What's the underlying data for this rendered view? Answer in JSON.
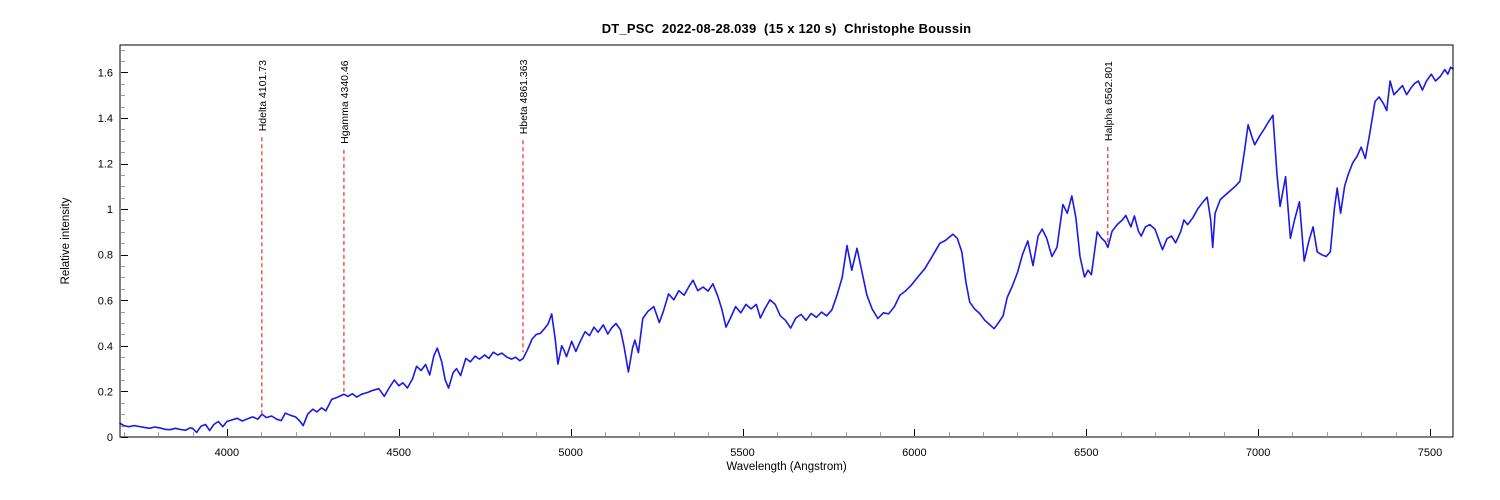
{
  "header": {
    "title": "DT_PSC  2022-08-28.039  (15 x 120 s)  Christophe Boussin"
  },
  "chart_data": {
    "type": "line",
    "title": "DT_PSC  2022-08-28.039  (15 x 120 s)  Christophe Boussin",
    "xlabel": "Wavelength (Angstrom)",
    "ylabel": "Relative intensity",
    "xlim": [
      3689,
      7567
    ],
    "ylim": [
      0,
      1.72
    ],
    "x_major_ticks": [
      4000,
      4500,
      5000,
      5500,
      6000,
      6500,
      7000,
      7500
    ],
    "x_minor_step": 100,
    "y_major_ticks": [
      0,
      0.2,
      0.4,
      0.6,
      0.8,
      1,
      1.2,
      1.4,
      1.6
    ],
    "y_minor_step": 0.05,
    "grid": false,
    "legend": "none",
    "line_color": "#1a1ae8",
    "marker_line_color": "#e80000",
    "axis_color": "#000000",
    "minor_tick_color": "#a0a0a0",
    "spectral_lines": [
      {
        "label": "Hdelta 4101.73",
        "wavelength": 4101.73,
        "line_top": 1.315,
        "line_bottom": 0.105
      },
      {
        "label": "Hgamma 4340.46",
        "wavelength": 4340.46,
        "line_top": 1.26,
        "line_bottom": 0.19
      },
      {
        "label": "Hbeta 4861.363",
        "wavelength": 4861.363,
        "line_top": 1.302,
        "line_bottom": 0.372
      },
      {
        "label": "Halpha 6562.801",
        "wavelength": 6562.801,
        "line_top": 1.272,
        "line_bottom": 0.838
      }
    ],
    "series": [
      {
        "name": "spectrum",
        "x": [
          3689,
          3700,
          3715,
          3730,
          3745,
          3760,
          3775,
          3790,
          3805,
          3820,
          3835,
          3850,
          3865,
          3880,
          3892,
          3900,
          3912,
          3925,
          3938,
          3950,
          3962,
          3975,
          3988,
          4000,
          4015,
          4030,
          4045,
          4060,
          4075,
          4090,
          4102,
          4115,
          4130,
          4145,
          4158,
          4170,
          4185,
          4200,
          4212,
          4222,
          4235,
          4250,
          4262,
          4275,
          4288,
          4305,
          4318,
          4330,
          4340,
          4352,
          4365,
          4378,
          4392,
          4408,
          4425,
          4442,
          4458,
          4472,
          4487,
          4500,
          4512,
          4525,
          4540,
          4552,
          4565,
          4578,
          4590,
          4602,
          4612,
          4625,
          4635,
          4645,
          4658,
          4668,
          4680,
          4695,
          4708,
          4722,
          4735,
          4750,
          4762,
          4775,
          4788,
          4800,
          4815,
          4828,
          4840,
          4852,
          4862,
          4875,
          4888,
          4900,
          4912,
          4925,
          4935,
          4945,
          4955,
          4963,
          4974,
          4981,
          4988,
          5003,
          5015,
          5028,
          5042,
          5055,
          5068,
          5080,
          5095,
          5108,
          5120,
          5132,
          5145,
          5155,
          5168,
          5180,
          5187,
          5197,
          5210,
          5225,
          5242,
          5258,
          5270,
          5285,
          5300,
          5315,
          5330,
          5345,
          5356,
          5370,
          5385,
          5400,
          5414,
          5428,
          5440,
          5452,
          5465,
          5480,
          5495,
          5510,
          5525,
          5540,
          5552,
          5565,
          5580,
          5595,
          5610,
          5625,
          5640,
          5655,
          5670,
          5685,
          5700,
          5715,
          5730,
          5745,
          5760,
          5775,
          5790,
          5804,
          5818,
          5833,
          5848,
          5862,
          5877,
          5894,
          5910,
          5925,
          5942,
          5958,
          5975,
          5992,
          6010,
          6030,
          6050,
          6074,
          6090,
          6112,
          6125,
          6138,
          6150,
          6161,
          6175,
          6190,
          6205,
          6220,
          6232,
          6245,
          6258,
          6270,
          6285,
          6300,
          6315,
          6330,
          6345,
          6360,
          6372,
          6385,
          6400,
          6415,
          6432,
          6445,
          6458,
          6470,
          6482,
          6495,
          6505,
          6515,
          6525,
          6532,
          6545,
          6555,
          6563,
          6575,
          6590,
          6605,
          6615,
          6630,
          6640,
          6652,
          6660,
          6672,
          6685,
          6700,
          6712,
          6722,
          6735,
          6748,
          6760,
          6775,
          6784,
          6795,
          6810,
          6825,
          6840,
          6852,
          6862,
          6868,
          6875,
          6890,
          6905,
          6920,
          6935,
          6947,
          6960,
          6971,
          6983,
          6990,
          7005,
          7018,
          7030,
          7043,
          7055,
          7064,
          7080,
          7094,
          7106,
          7120,
          7134,
          7148,
          7160,
          7172,
          7185,
          7198,
          7210,
          7222,
          7230,
          7240,
          7252,
          7262,
          7275,
          7288,
          7300,
          7312,
          7325,
          7340,
          7352,
          7365,
          7374,
          7384,
          7395,
          7408,
          7420,
          7432,
          7445,
          7456,
          7466,
          7478,
          7490,
          7504,
          7516,
          7530,
          7543,
          7552,
          7560,
          7567
        ],
        "y": [
          0.06,
          0.05,
          0.045,
          0.05,
          0.046,
          0.042,
          0.038,
          0.044,
          0.04,
          0.034,
          0.032,
          0.038,
          0.033,
          0.03,
          0.04,
          0.038,
          0.02,
          0.048,
          0.055,
          0.028,
          0.055,
          0.068,
          0.045,
          0.068,
          0.075,
          0.082,
          0.07,
          0.08,
          0.088,
          0.078,
          0.1,
          0.085,
          0.092,
          0.078,
          0.072,
          0.105,
          0.095,
          0.088,
          0.07,
          0.05,
          0.1,
          0.122,
          0.11,
          0.128,
          0.115,
          0.165,
          0.172,
          0.18,
          0.188,
          0.178,
          0.19,
          0.175,
          0.188,
          0.195,
          0.205,
          0.212,
          0.178,
          0.215,
          0.25,
          0.225,
          0.238,
          0.215,
          0.255,
          0.31,
          0.292,
          0.318,
          0.272,
          0.355,
          0.39,
          0.33,
          0.25,
          0.215,
          0.282,
          0.3,
          0.27,
          0.345,
          0.33,
          0.355,
          0.342,
          0.36,
          0.345,
          0.372,
          0.36,
          0.368,
          0.35,
          0.342,
          0.35,
          0.335,
          0.345,
          0.385,
          0.43,
          0.45,
          0.455,
          0.478,
          0.498,
          0.54,
          0.43,
          0.32,
          0.4,
          0.38,
          0.352,
          0.42,
          0.375,
          0.42,
          0.462,
          0.445,
          0.482,
          0.46,
          0.492,
          0.452,
          0.48,
          0.498,
          0.47,
          0.4,
          0.285,
          0.39,
          0.425,
          0.37,
          0.52,
          0.552,
          0.572,
          0.502,
          0.552,
          0.628,
          0.602,
          0.642,
          0.622,
          0.662,
          0.688,
          0.642,
          0.658,
          0.64,
          0.672,
          0.618,
          0.56,
          0.482,
          0.522,
          0.572,
          0.545,
          0.582,
          0.562,
          0.582,
          0.522,
          0.562,
          0.602,
          0.582,
          0.532,
          0.512,
          0.478,
          0.522,
          0.538,
          0.512,
          0.542,
          0.525,
          0.548,
          0.532,
          0.558,
          0.622,
          0.7,
          0.84,
          0.732,
          0.828,
          0.722,
          0.622,
          0.562,
          0.52,
          0.545,
          0.54,
          0.572,
          0.622,
          0.642,
          0.668,
          0.702,
          0.738,
          0.788,
          0.85,
          0.862,
          0.89,
          0.872,
          0.812,
          0.68,
          0.592,
          0.562,
          0.542,
          0.512,
          0.492,
          0.475,
          0.502,
          0.532,
          0.612,
          0.662,
          0.722,
          0.802,
          0.86,
          0.752,
          0.882,
          0.912,
          0.872,
          0.792,
          0.832,
          1.02,
          0.982,
          1.058,
          0.962,
          0.792,
          0.702,
          0.732,
          0.712,
          0.822,
          0.9,
          0.872,
          0.858,
          0.832,
          0.902,
          0.932,
          0.952,
          0.972,
          0.922,
          0.97,
          0.902,
          0.882,
          0.922,
          0.932,
          0.912,
          0.862,
          0.822,
          0.87,
          0.882,
          0.852,
          0.902,
          0.952,
          0.932,
          0.962,
          1.002,
          1.032,
          1.052,
          0.952,
          0.832,
          0.982,
          1.042,
          1.062,
          1.082,
          1.102,
          1.122,
          1.252,
          1.37,
          1.312,
          1.282,
          1.322,
          1.352,
          1.382,
          1.412,
          1.152,
          1.012,
          1.142,
          0.872,
          0.952,
          1.032,
          0.772,
          0.862,
          0.922,
          0.812,
          0.8,
          0.792,
          0.812,
          1.002,
          1.092,
          0.982,
          1.102,
          1.152,
          1.202,
          1.232,
          1.272,
          1.222,
          1.332,
          1.472,
          1.492,
          1.462,
          1.432,
          1.562,
          1.502,
          1.522,
          1.542,
          1.502,
          1.532,
          1.552,
          1.562,
          1.522,
          1.562,
          1.592,
          1.562,
          1.582,
          1.612,
          1.592,
          1.622,
          1.615
        ]
      }
    ]
  }
}
